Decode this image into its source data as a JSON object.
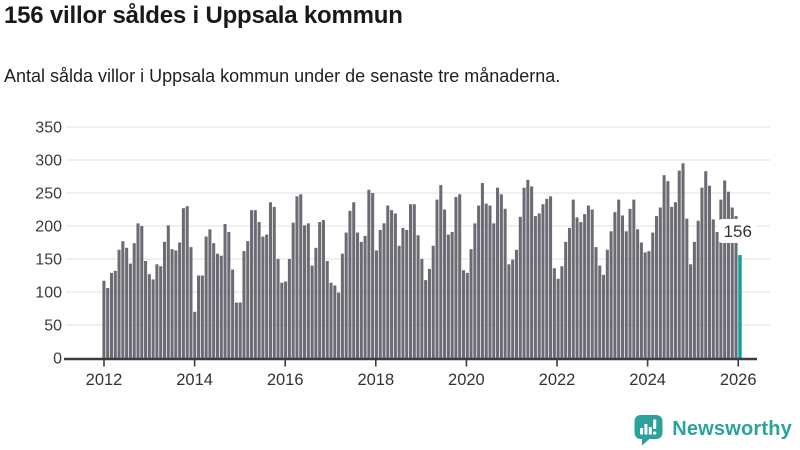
{
  "header": {
    "title": "156 villor såldes i Uppsala kommun",
    "subtitle": "Antal sålda villor i Uppsala kommun under de senaste tre månaderna."
  },
  "chart_data": {
    "type": "bar",
    "title": "156 villor såldes i Uppsala kommun",
    "subtitle": "Antal sålda villor i Uppsala kommun under de senaste tre månaderna.",
    "frequency": "monthly",
    "x_start": "2012-01",
    "x_end": "2026-01",
    "x_tick_labels": [
      "2012",
      "2014",
      "2016",
      "2018",
      "2020",
      "2022",
      "2024",
      "2026"
    ],
    "y_ticks": [
      0,
      50,
      100,
      150,
      200,
      250,
      300,
      350
    ],
    "ylim": [
      0,
      350
    ],
    "grid": "horizontal",
    "legend": "none",
    "bar_color": "#6b6b73",
    "highlight_color": "#0d9f9f",
    "highlight_index": 168,
    "highlight_label": "156",
    "values": [
      117,
      106,
      129,
      132,
      164,
      177,
      167,
      143,
      174,
      204,
      200,
      147,
      127,
      119,
      142,
      139,
      176,
      201,
      165,
      163,
      175,
      227,
      230,
      168,
      70,
      125,
      125,
      184,
      195,
      174,
      158,
      155,
      203,
      191,
      134,
      84,
      84,
      162,
      177,
      224,
      224,
      206,
      184,
      187,
      236,
      229,
      150,
      114,
      116,
      150,
      205,
      245,
      248,
      201,
      204,
      140,
      167,
      206,
      209,
      147,
      114,
      110,
      99,
      158,
      190,
      223,
      236,
      190,
      176,
      185,
      255,
      250,
      163,
      194,
      204,
      231,
      224,
      219,
      170,
      197,
      194,
      233,
      233,
      186,
      150,
      118,
      135,
      170,
      240,
      262,
      225,
      187,
      191,
      244,
      248,
      133,
      129,
      165,
      204,
      231,
      265,
      234,
      231,
      204,
      258,
      248,
      226,
      142,
      149,
      164,
      214,
      258,
      270,
      260,
      215,
      219,
      233,
      241,
      245,
      136,
      120,
      139,
      176,
      197,
      240,
      213,
      206,
      218,
      231,
      225,
      168,
      140,
      126,
      164,
      192,
      221,
      240,
      216,
      192,
      226,
      240,
      195,
      175,
      160,
      162,
      190,
      215,
      228,
      277,
      268,
      229,
      236,
      284,
      295,
      211,
      142,
      176,
      208,
      258,
      283,
      261,
      210,
      191,
      240,
      269,
      252,
      228,
      215,
      156
    ]
  },
  "footer": {
    "brand": "Newsworthy",
    "brand_color": "#2ba39c",
    "logo_icon": "bar-chart-speech-bubble-icon"
  }
}
